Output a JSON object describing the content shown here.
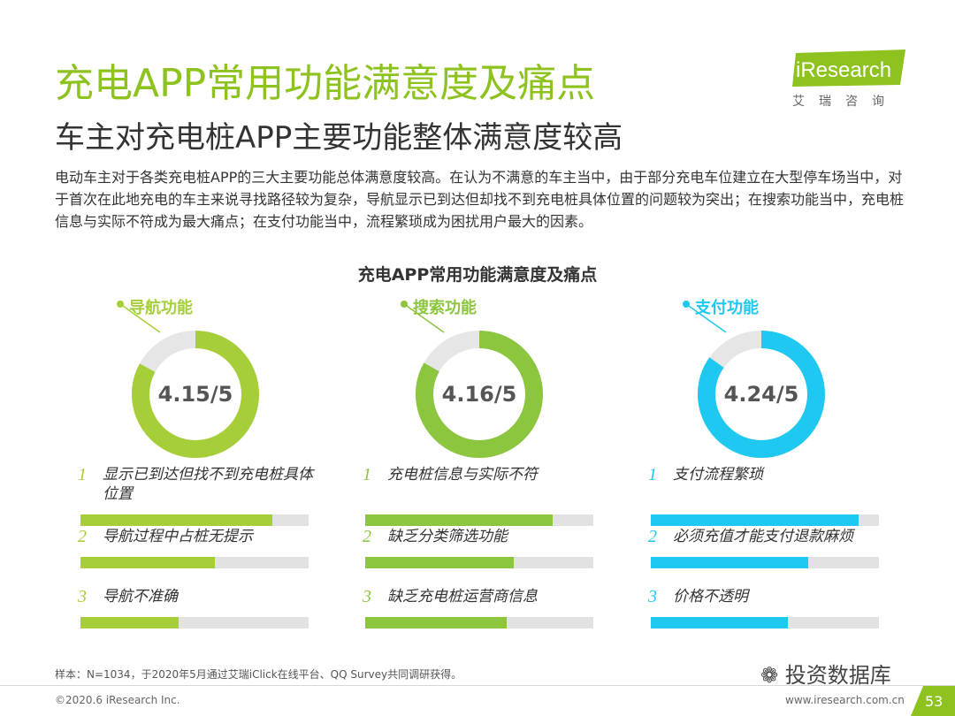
{
  "header": {
    "title": "充电APP常用功能满意度及痛点",
    "subtitle": "车主对充电桩APP主要功能整体满意度较高"
  },
  "logo": {
    "brand": "iResearch",
    "cn": "艾瑞咨询"
  },
  "description": "电动车主对于各类充电桩APP的三大主要功能总体满意度较高。在认为不满意的车主当中，由于部分充电车位建立在大型停车场当中，对于首次在此地充电的车主来说寻找路径较为复杂，导航显示已到达但却找不到充电桩具体位置的问题较为突出；在搜索功能当中，充电桩信息与实际不符成为最大痛点；在支付功能当中，流程繁琐成为困扰用户最大的因素。",
  "chart_data": {
    "type": "donut",
    "title": "充电APP常用功能满意度及痛点",
    "scale_max": 5,
    "series": [
      {
        "name": "导航功能",
        "score": 4.15,
        "score_label": "4.15/5",
        "color": "#a6ce39",
        "pain_points": [
          {
            "rank": "1",
            "label": "显示已到达但找不到充电桩具体位置",
            "value": 0.84
          },
          {
            "rank": "2",
            "label": "导航过程中占桩无提示",
            "value": 0.59
          },
          {
            "rank": "3",
            "label": "导航不准确",
            "value": 0.43
          }
        ]
      },
      {
        "name": "搜索功能",
        "score": 4.16,
        "score_label": "4.16/5",
        "color": "#8cc63f",
        "pain_points": [
          {
            "rank": "1",
            "label": "充电桩信息与实际不符",
            "value": 0.82
          },
          {
            "rank": "2",
            "label": "缺乏分类筛选功能",
            "value": 0.65
          },
          {
            "rank": "3",
            "label": "缺乏充电桩运营商信息",
            "value": 0.62
          }
        ]
      },
      {
        "name": "支付功能",
        "score": 4.24,
        "score_label": "4.24/5",
        "color": "#1fc8f0",
        "pain_points": [
          {
            "rank": "1",
            "label": "支付流程繁琐",
            "value": 0.91
          },
          {
            "rank": "2",
            "label": "必须充值才能支付退款麻烦",
            "value": 0.69
          },
          {
            "rank": "3",
            "label": "价格不透明",
            "value": 0.6
          }
        ]
      }
    ]
  },
  "footer": {
    "note": "样本：N=1034，于2020年5月通过艾瑞iClick在线平台、QQ Survey共同调研获得。",
    "copyright": "©2020.6 iResearch Inc.",
    "site": "www.iresearch.com.cn",
    "page": "53",
    "watermark": "投资数据库"
  }
}
